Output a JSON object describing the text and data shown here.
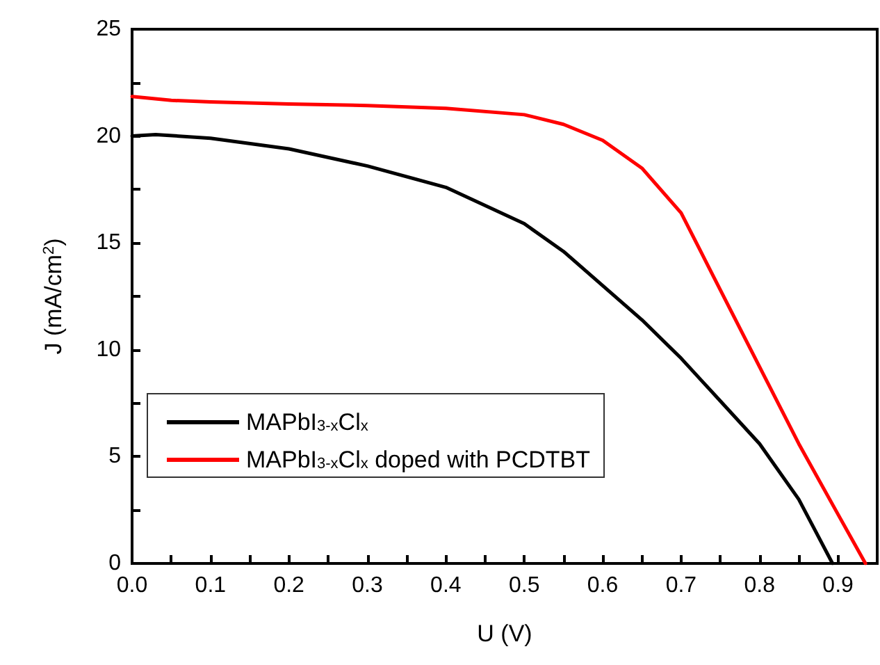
{
  "chart_data": {
    "type": "line",
    "xlabel": "U (V)",
    "ylabel": "J (mA/cm$^{2}$)",
    "xlim": [
      0,
      0.95
    ],
    "ylim": [
      0,
      25
    ],
    "xticks": [
      {
        "value": 0,
        "label": "0.0"
      },
      {
        "value": 0.05,
        "label": null
      },
      {
        "value": 0.1,
        "label": "0.1"
      },
      {
        "value": 0.15,
        "label": null
      },
      {
        "value": 0.2,
        "label": "0.2"
      },
      {
        "value": 0.25,
        "label": null
      },
      {
        "value": 0.3,
        "label": "0.3"
      },
      {
        "value": 0.35,
        "label": null
      },
      {
        "value": 0.4,
        "label": "0.4"
      },
      {
        "value": 0.45,
        "label": null
      },
      {
        "value": 0.5,
        "label": "0.5"
      },
      {
        "value": 0.55,
        "label": null
      },
      {
        "value": 0.6,
        "label": "0.6"
      },
      {
        "value": 0.65,
        "label": null
      },
      {
        "value": 0.7,
        "label": "0.7"
      },
      {
        "value": 0.75,
        "label": null
      },
      {
        "value": 0.8,
        "label": "0.8"
      },
      {
        "value": 0.85,
        "label": null
      },
      {
        "value": 0.9,
        "label": "0.9"
      }
    ],
    "yticks": [
      0,
      {
        "value": 2.5,
        "label": null
      },
      5,
      {
        "value": 7.5,
        "label": null
      },
      10,
      {
        "value": 12.5,
        "label": null
      },
      15,
      {
        "value": 17.5,
        "label": null
      },
      20,
      {
        "value": 22.5,
        "label": null
      },
      25
    ],
    "x": [
      0,
      0.03,
      0.1,
      0.2,
      0.3,
      0.4,
      0.5,
      0.55,
      0.6,
      0.65,
      0.7,
      0.75,
      0.8,
      0.85,
      0.893
    ],
    "series": [
      {
        "name": "MAPbI$_{3-x}$Cl$_{x}$",
        "color": "#000000",
        "values": [
          20.0,
          20.07,
          19.9,
          19.4,
          18.6,
          17.6,
          15.9,
          14.6,
          13.0,
          11.4,
          9.6,
          7.6,
          5.6,
          3.0,
          0
        ]
      },
      {
        "name": "MAPbI$_{3-x}$Cl$_{x}$ doped with PCDTBT",
        "color": "#ff0000",
        "x": [
          0,
          0.05,
          0.1,
          0.2,
          0.3,
          0.4,
          0.5,
          0.55,
          0.6,
          0.65,
          0.7,
          0.725,
          0.75,
          0.8,
          0.85,
          0.9,
          0.935
        ],
        "values": [
          21.85,
          21.67,
          21.6,
          21.5,
          21.43,
          21.3,
          21.0,
          20.55,
          19.8,
          18.5,
          16.4,
          14.6,
          12.8,
          9.2,
          5.6,
          2.3,
          0
        ]
      }
    ],
    "legend": "left",
    "grid": false,
    "marker": "none",
    "line_style": "solid"
  }
}
